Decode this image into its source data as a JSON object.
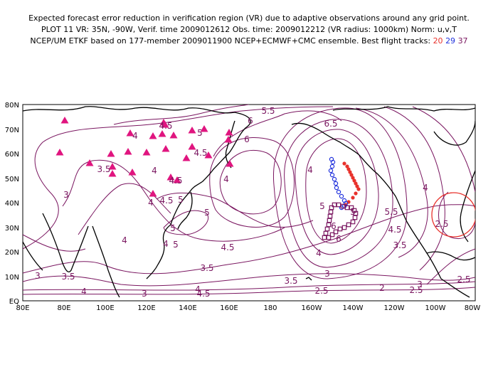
{
  "title": {
    "line1": "Expected forecast error reduction in verification region (VR) due to adaptive observations around any grid point.",
    "line2": "PLOT 11 VR: 35N, -90W, Verif. time 2009012612 Obs. time: 2009012212 (VR radius: 1000km) Norm: u,v,T",
    "line3_prefix": "NCEP/UM ETKF based on 177-member 2009011900 NCEP+ECMWF+CMC ensemble. Best flight tracks: ",
    "tracks": [
      "20",
      "29",
      "37"
    ]
  },
  "colors": {
    "contour": "#7a1660",
    "track_20": "#e8322c",
    "track_29": "#2233dd",
    "track_37": "#7a1660",
    "stations": "#e0157f",
    "verification_circle": "#e8322c"
  },
  "axes": {
    "lon_labels": [
      "80E",
      "80E",
      "100E",
      "120E",
      "140E",
      "160E",
      "180",
      "160W",
      "140W",
      "120W",
      "100W",
      "80W"
    ],
    "lat_labels": [
      "EQ",
      "10N",
      "20N",
      "30N",
      "40N",
      "50N",
      "60N",
      "70N",
      "80N"
    ]
  },
  "contour_labels": [
    "5.5",
    "6",
    "4.5",
    "5",
    "4",
    "4.5",
    "3.5",
    "4",
    "4.5",
    "6",
    "5",
    "6.5",
    "3",
    "4.5",
    "4",
    "4",
    "5",
    "6",
    "5",
    "4",
    "4",
    "5.5",
    "4.5",
    "5",
    "5",
    "3.5",
    "4",
    "6",
    "2.5",
    "4",
    "4.5",
    "3",
    "3.5",
    "3.5",
    "2.5",
    "3",
    "3.5",
    "4",
    "3",
    "4",
    "2",
    "2.5",
    "2.5",
    "3",
    "4",
    "5",
    "4.5"
  ],
  "verification_region": {
    "center_lat": 35,
    "center_lon": -90,
    "radius_km": 1000
  },
  "station_count": 27,
  "flight_tracks": [
    {
      "id": "20",
      "marker": "filled-circle",
      "color": "#e8322c"
    },
    {
      "id": "29",
      "marker": "open-circle",
      "color": "#2233dd"
    },
    {
      "id": "37",
      "marker": "open-square",
      "color": "#7a1660"
    }
  ]
}
